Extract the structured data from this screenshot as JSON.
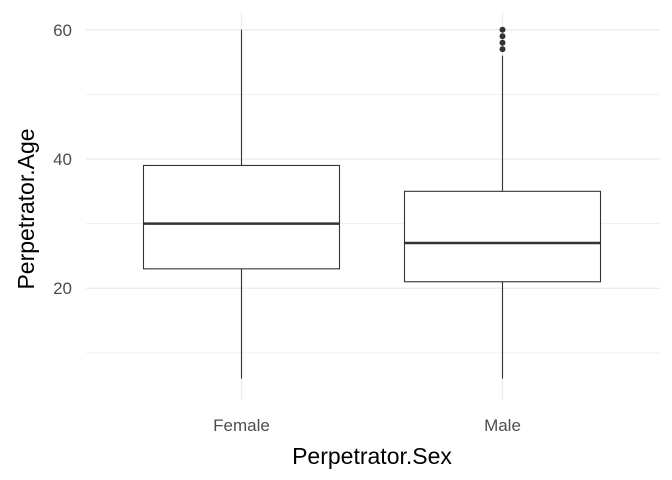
{
  "chart_data": {
    "type": "boxplot",
    "title": "",
    "xlabel": "Perpetrator.Sex",
    "ylabel": "Perpetrator.Age",
    "ylim": [
      2.7,
      62.6
    ],
    "yticks": [
      20,
      40,
      60
    ],
    "grid": true,
    "legend": "none",
    "categories": [
      "Female",
      "Male"
    ],
    "boxes": [
      {
        "category": "Female",
        "min": 6,
        "q1": 23,
        "median": 30,
        "q3": 39,
        "max": 60,
        "outliers": []
      },
      {
        "category": "Male",
        "min": 6,
        "q1": 21,
        "median": 27,
        "q3": 35,
        "max": 56,
        "outliers": [
          57,
          58,
          59,
          60
        ]
      }
    ],
    "colors": {
      "grid": "#ebebeb",
      "box": "#333333",
      "median": "#333333",
      "outlier": "#333333"
    }
  }
}
